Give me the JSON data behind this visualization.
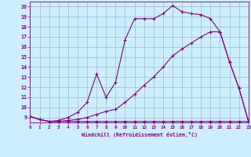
{
  "xlabel": "Windchill (Refroidissement éolien,°C)",
  "bg_color": "#cceeff",
  "line_color": "#880088",
  "grid_color": "#99bbcc",
  "xlim": [
    0,
    23
  ],
  "ylim": [
    8.5,
    20.5
  ],
  "xticks": [
    0,
    1,
    2,
    3,
    4,
    5,
    6,
    7,
    8,
    9,
    10,
    11,
    12,
    13,
    14,
    15,
    16,
    17,
    18,
    19,
    20,
    21,
    22,
    23
  ],
  "yticks": [
    9,
    10,
    11,
    12,
    13,
    14,
    15,
    16,
    17,
    18,
    19,
    20
  ],
  "line1_x": [
    0,
    1,
    2,
    3,
    4,
    5,
    6,
    7,
    8,
    9,
    10,
    11,
    12,
    13,
    14,
    15,
    16,
    17,
    18,
    19,
    20,
    21,
    22,
    23
  ],
  "line1_y": [
    9.1,
    8.8,
    8.6,
    8.6,
    8.6,
    8.6,
    8.6,
    8.6,
    8.6,
    8.6,
    8.6,
    8.6,
    8.6,
    8.6,
    8.6,
    8.6,
    8.6,
    8.6,
    8.6,
    8.6,
    8.6,
    8.6,
    8.6,
    8.6
  ],
  "line2_x": [
    0,
    1,
    2,
    3,
    4,
    5,
    6,
    7,
    8,
    9,
    10,
    11,
    12,
    13,
    14,
    15,
    16,
    17,
    18,
    19,
    20,
    21,
    22,
    23
  ],
  "line2_y": [
    9.1,
    8.8,
    8.6,
    8.6,
    8.7,
    8.8,
    9.0,
    9.3,
    9.6,
    9.8,
    10.5,
    11.3,
    12.2,
    13.0,
    14.0,
    15.1,
    15.8,
    16.4,
    17.0,
    17.5,
    17.5,
    14.5,
    11.9,
    8.6
  ],
  "line3_x": [
    0,
    1,
    2,
    3,
    4,
    5,
    6,
    7,
    8,
    9,
    10,
    11,
    12,
    13,
    14,
    15,
    16,
    17,
    18,
    19,
    20,
    21,
    22,
    23
  ],
  "line3_y": [
    9.1,
    8.8,
    8.6,
    8.7,
    9.0,
    9.5,
    10.5,
    13.3,
    11.0,
    12.5,
    16.7,
    18.8,
    18.8,
    18.8,
    19.3,
    20.1,
    19.5,
    19.3,
    19.2,
    18.8,
    17.5,
    14.5,
    11.9,
    8.6
  ],
  "marker": "+",
  "markersize": 2.5,
  "linewidth": 0.8
}
